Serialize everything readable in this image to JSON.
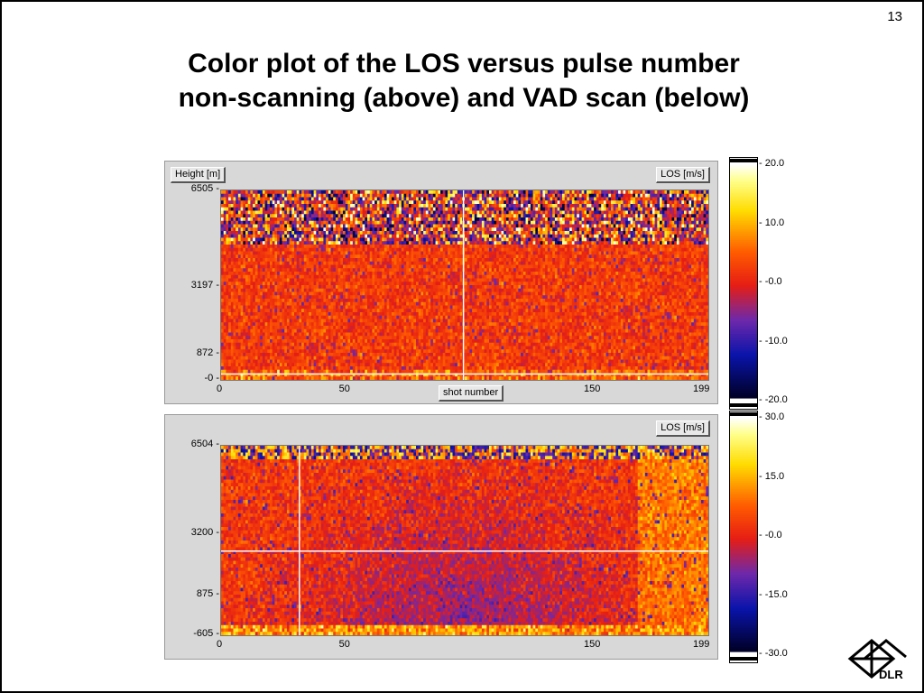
{
  "slide": {
    "page_number": "13",
    "title_line1": "Color plot of the LOS versus pulse number",
    "title_line2": "non-scanning (above) and  VAD scan (below)",
    "logo_text": "DLR"
  },
  "chart_data": [
    {
      "type": "heatmap",
      "name": "non-scanning",
      "ylabel": "Height [m]",
      "xlabel": "shot number",
      "colorbar_label": "LOS [m/s]",
      "x_ticks": [
        "0",
        "50",
        "150",
        "199"
      ],
      "x_tick_values": [
        0,
        50,
        150,
        199
      ],
      "xlim": [
        0,
        199
      ],
      "y_ticks": [
        "6505",
        "3197",
        "872",
        "-0"
      ],
      "y_tick_values": [
        6505,
        3197,
        872,
        0
      ],
      "ylim": [
        0,
        6505
      ],
      "colorbar_ticks": [
        "20.0",
        "10.0",
        "-0.0",
        "-10.0",
        "-20.0"
      ],
      "colorbar_range": [
        -20,
        20
      ],
      "crosshair": {
        "x": 99,
        "y": 200
      },
      "grid": false
    },
    {
      "type": "heatmap",
      "name": "VAD scan",
      "ylabel": "",
      "xlabel": "",
      "colorbar_label": "LOS [m/s]",
      "x_ticks": [
        "0",
        "50",
        "150",
        "199"
      ],
      "x_tick_values": [
        0,
        50,
        150,
        199
      ],
      "xlim": [
        0,
        199
      ],
      "y_ticks": [
        "6504",
        "3200",
        "875",
        "-605"
      ],
      "y_tick_values": [
        6504,
        3200,
        875,
        -605
      ],
      "ylim": [
        -605,
        6504
      ],
      "colorbar_ticks": [
        "30.0",
        "15.0",
        "-0.0",
        "-15.0",
        "-30.0"
      ],
      "colorbar_range": [
        -30,
        30
      ],
      "crosshair": {
        "x": 32,
        "y": 2550
      },
      "grid": false
    }
  ]
}
